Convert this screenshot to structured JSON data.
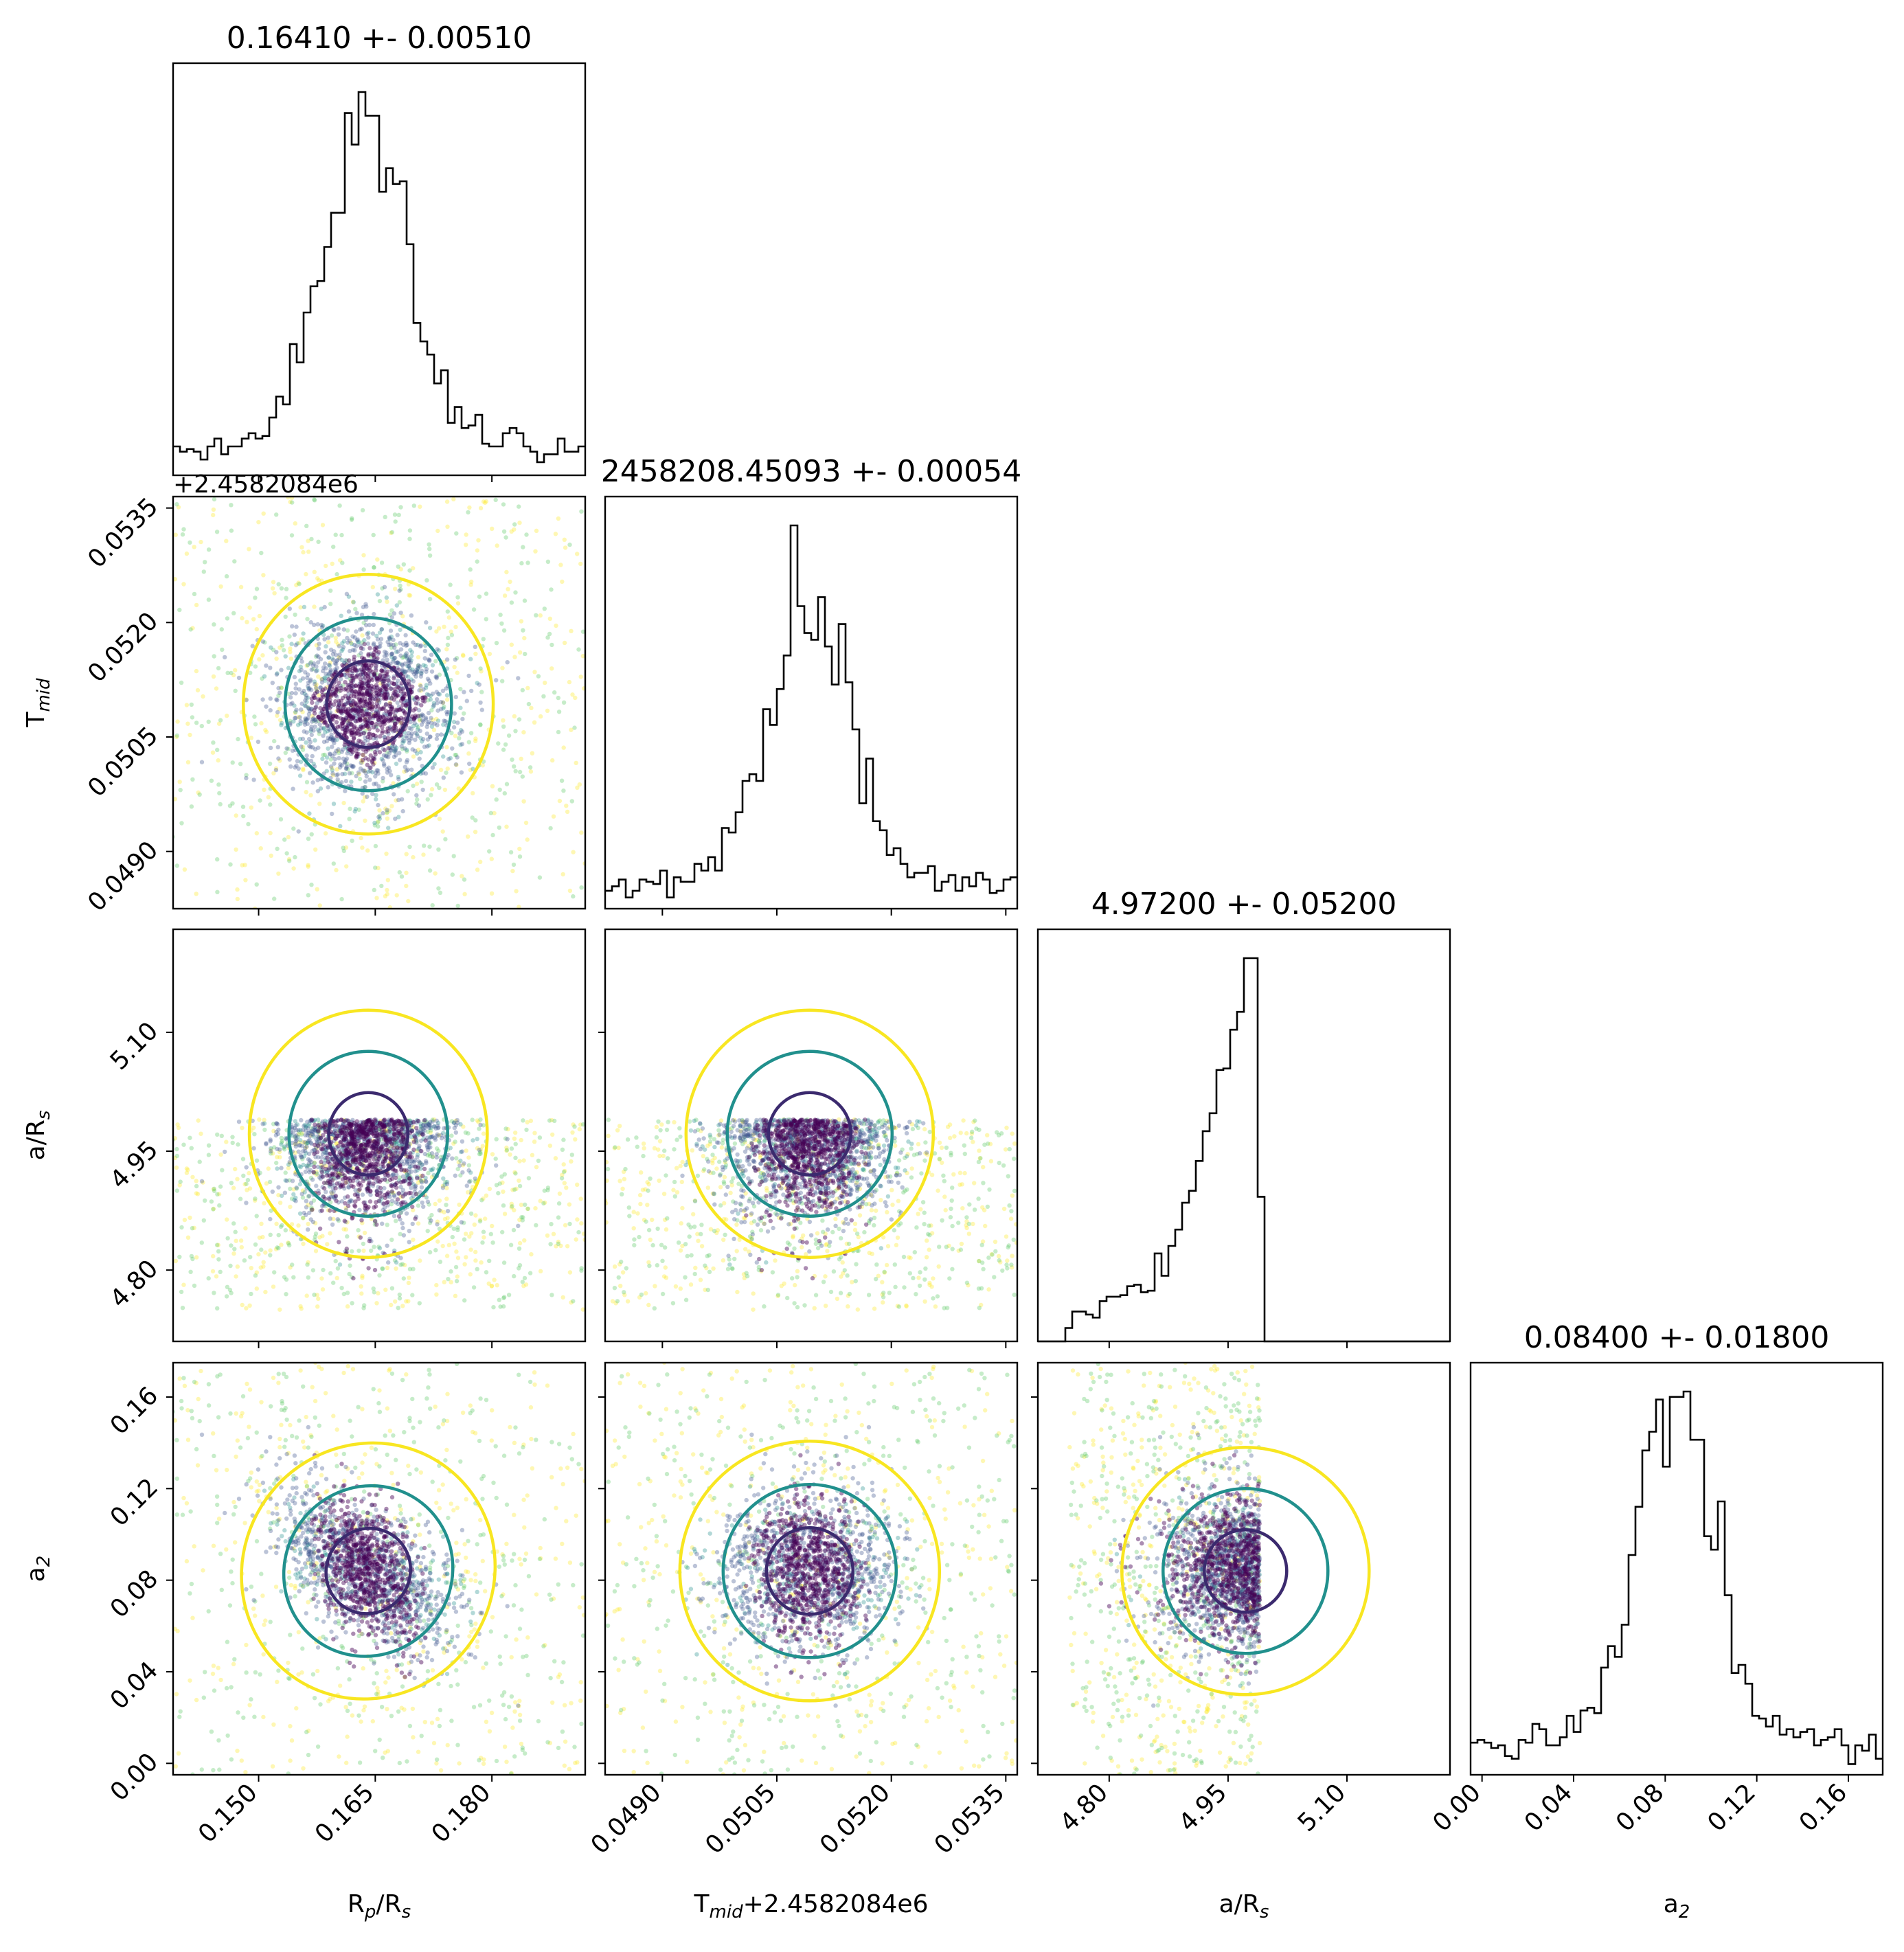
{
  "chart_data": {
    "type": "corner",
    "parameters": [
      {
        "name": "Rp/Rs",
        "label_main": "R",
        "label_sub1": "p",
        "label_mid": "/R",
        "label_sub2": "s",
        "title": "0.16410 +- 0.00510",
        "mean": 0.1641,
        "std": 0.0051,
        "ticks": [
          0.15,
          0.165,
          0.18
        ],
        "tick_labels": [
          "0.150",
          "0.165",
          "0.180"
        ],
        "range": [
          0.139,
          0.192
        ]
      },
      {
        "name": "Tmid",
        "label_main": "T",
        "label_sub1": "mid",
        "offset_text": "+2.4582084e6",
        "title": "2458208.45093 +- 0.00054",
        "mean": 0.05093,
        "std": 0.00054,
        "ticks": [
          0.049,
          0.0505,
          0.052,
          0.0535
        ],
        "tick_labels": [
          "0.0490",
          "0.0505",
          "0.0520",
          "0.0535"
        ],
        "range": [
          0.04825,
          0.05365
        ]
      },
      {
        "name": "a/Rs",
        "label_main": "a/R",
        "label_sub1": "s",
        "title": "4.97200 +- 0.05200",
        "mean": 4.972,
        "std": 0.052,
        "ticks": [
          4.8,
          4.95,
          5.1
        ],
        "tick_labels": [
          "4.80",
          "4.95",
          "5.10"
        ],
        "range": [
          4.71,
          5.23
        ]
      },
      {
        "name": "a2",
        "label_main": "a",
        "label_sub1": "2",
        "title": "0.08400 +- 0.01800",
        "mean": 0.084,
        "std": 0.018,
        "ticks": [
          0.0,
          0.04,
          0.08,
          0.12,
          0.16
        ],
        "tick_labels": [
          "0.00",
          "0.04",
          "0.08",
          "0.12",
          "0.16"
        ],
        "range": [
          -0.005,
          0.175
        ]
      }
    ],
    "corner_offset_text": "+2.4582084e6",
    "x_axis_last_label_suffix": "+2.4582084e6",
    "sample_colormap": "viridis",
    "contour_colors": [
      "#3b2a6e",
      "#21908d",
      "#f8e621"
    ],
    "histogram_color": "#000000",
    "samples_note_truncation": {
      "param": "a/Rs",
      "upper_bound": 4.99,
      "lower_bound": 4.75
    }
  }
}
